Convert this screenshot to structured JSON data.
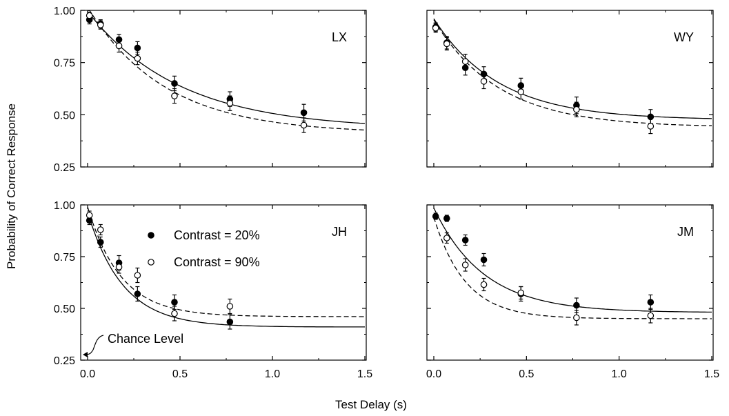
{
  "figure": {
    "ylabel": "Probability of Correct Response",
    "xlabel": "Test Delay (s)",
    "legend": {
      "entries": [
        {
          "label": "Contrast = 20%",
          "marker": "filled-circle",
          "line": "solid"
        },
        {
          "label": "Contrast = 90%",
          "marker": "open-circle",
          "line": "dashed"
        }
      ]
    },
    "annotation": "Chance Level"
  },
  "chart_data": [
    {
      "type": "scatter",
      "panel": "LX",
      "xlim": [
        0,
        1.5
      ],
      "ylim": [
        0.25,
        1.0
      ],
      "xticks": [
        "0.0",
        "0.5",
        "1.0",
        "1.5"
      ],
      "yticks": [
        "0.25",
        "0.50",
        "0.75",
        "1.00"
      ],
      "x": [
        0.01,
        0.07,
        0.17,
        0.27,
        0.47,
        0.77,
        1.17
      ],
      "series": [
        {
          "name": "Contrast = 20%",
          "values": [
            0.955,
            0.935,
            0.86,
            0.82,
            0.65,
            0.575,
            0.51
          ],
          "err": [
            0.02,
            0.02,
            0.025,
            0.03,
            0.035,
            0.035,
            0.04
          ],
          "fit": {
            "asymptote": 0.43,
            "tau": 0.5
          }
        },
        {
          "name": "Contrast = 90%",
          "values": [
            0.975,
            0.93,
            0.83,
            0.77,
            0.59,
            0.555,
            0.45
          ],
          "err": [
            0.015,
            0.02,
            0.03,
            0.03,
            0.035,
            0.035,
            0.035
          ],
          "fit": {
            "asymptote": 0.41,
            "tau": 0.42
          }
        }
      ]
    },
    {
      "type": "scatter",
      "panel": "WY",
      "xlim": [
        0,
        1.5
      ],
      "ylim": [
        0.25,
        1.0
      ],
      "xticks": [
        "0.0",
        "0.5",
        "1.0",
        "1.5"
      ],
      "yticks": [
        "0.25",
        "0.50",
        "0.75",
        "1.00"
      ],
      "x": [
        0.01,
        0.07,
        0.17,
        0.27,
        0.47,
        0.77,
        1.17
      ],
      "series": [
        {
          "name": "Contrast = 20%",
          "values": [
            0.92,
            0.845,
            0.725,
            0.695,
            0.64,
            0.545,
            0.49
          ],
          "err": [
            0.02,
            0.03,
            0.035,
            0.035,
            0.035,
            0.04,
            0.035
          ],
          "fit": {
            "asymptote": 0.475,
            "tau": 0.35
          }
        },
        {
          "name": "Contrast = 90%",
          "values": [
            0.915,
            0.84,
            0.755,
            0.66,
            0.61,
            0.525,
            0.445
          ],
          "err": [
            0.02,
            0.03,
            0.035,
            0.035,
            0.035,
            0.035,
            0.035
          ],
          "fit": {
            "asymptote": 0.44,
            "tau": 0.35
          }
        }
      ]
    },
    {
      "type": "scatter",
      "panel": "JH",
      "xlim": [
        0,
        1.5
      ],
      "ylim": [
        0.25,
        1.0
      ],
      "xticks": [
        "0.0",
        "0.5",
        "1.0",
        "1.5"
      ],
      "yticks": [
        "0.25",
        "0.50",
        "0.75",
        "1.00"
      ],
      "x": [
        0.01,
        0.07,
        0.17,
        0.27,
        0.47,
        0.77,
        1.17
      ],
      "series": [
        {
          "name": "Contrast = 20%",
          "values": [
            0.925,
            0.82,
            0.72,
            0.57,
            0.53,
            0.435,
            null
          ],
          "err": [
            0.02,
            0.025,
            0.035,
            0.035,
            0.035,
            0.035,
            null
          ],
          "fit": {
            "asymptote": 0.41,
            "tau": 0.19
          }
        },
        {
          "name": "Contrast = 90%",
          "values": [
            0.95,
            0.88,
            0.7,
            0.66,
            0.475,
            0.51,
            null
          ],
          "err": [
            0.02,
            0.025,
            0.03,
            0.035,
            0.035,
            0.035,
            null
          ],
          "fit": {
            "asymptote": 0.46,
            "tau": 0.18
          }
        }
      ]
    },
    {
      "type": "scatter",
      "panel": "JM",
      "xlim": [
        0,
        1.5
      ],
      "ylim": [
        0.25,
        1.0
      ],
      "xticks": [
        "0.0",
        "0.5",
        "1.0",
        "1.5"
      ],
      "yticks": [
        "0.25",
        "0.50",
        "0.75",
        "1.00"
      ],
      "x": [
        0.01,
        0.07,
        0.17,
        0.27,
        0.47,
        0.77,
        1.17
      ],
      "series": [
        {
          "name": "Contrast = 20%",
          "values": [
            0.945,
            0.935,
            0.83,
            0.735,
            0.57,
            0.515,
            0.53
          ],
          "err": [
            0.015,
            0.015,
            0.025,
            0.03,
            0.035,
            0.035,
            0.035
          ],
          "fit": {
            "asymptote": 0.48,
            "tau": 0.27
          }
        },
        {
          "name": "Contrast = 90%",
          "values": [
            null,
            0.84,
            0.71,
            0.615,
            0.575,
            0.455,
            0.465
          ],
          "err": [
            null,
            0.025,
            0.03,
            0.03,
            0.03,
            0.035,
            0.035
          ],
          "fit": {
            "asymptote": 0.45,
            "tau": 0.17
          }
        }
      ]
    }
  ]
}
